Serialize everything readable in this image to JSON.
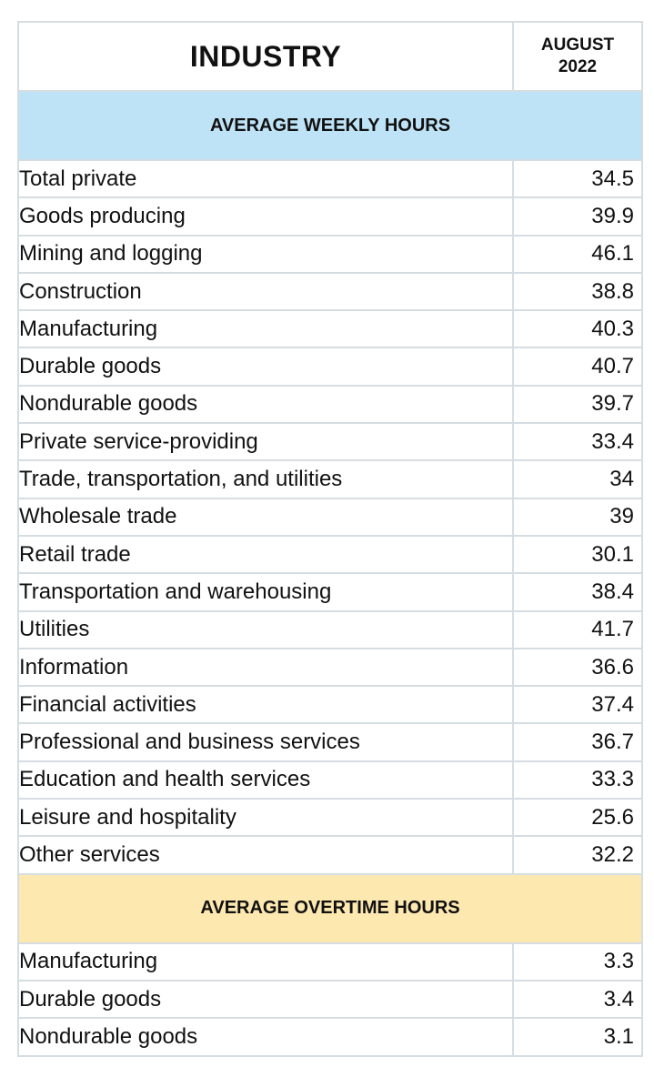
{
  "header": {
    "industry": "INDUSTRY",
    "month_line1": "AUGUST",
    "month_line2": "2022"
  },
  "sections": {
    "weekly_title": "AVERAGE WEEKLY HOURS",
    "overtime_title": "AVERAGE OVERTIME HOURS"
  },
  "colors": {
    "weekly_band": "#bfe3f6",
    "overtime_band": "#fde8b0",
    "grid": "#d5dde3"
  },
  "weekly_rows": [
    {
      "name": "Total private",
      "value": "34.5"
    },
    {
      "name": "Goods producing",
      "value": "39.9"
    },
    {
      "name": "Mining and logging",
      "value": "46.1"
    },
    {
      "name": "Construction",
      "value": "38.8"
    },
    {
      "name": "Manufacturing",
      "value": "40.3"
    },
    {
      "name": "Durable goods",
      "value": "40.7"
    },
    {
      "name": "Nondurable goods",
      "value": "39.7"
    },
    {
      "name": "Private service-providing",
      "value": "33.4"
    },
    {
      "name": "Trade, transportation, and utilities",
      "value": "34"
    },
    {
      "name": "Wholesale trade",
      "value": "39"
    },
    {
      "name": "Retail trade",
      "value": "30.1"
    },
    {
      "name": "Transportation and warehousing",
      "value": "38.4"
    },
    {
      "name": "Utilities",
      "value": "41.7"
    },
    {
      "name": "Information",
      "value": "36.6"
    },
    {
      "name": "Financial activities",
      "value": "37.4"
    },
    {
      "name": "Professional and business services",
      "value": "36.7"
    },
    {
      "name": "Education and health services",
      "value": "33.3"
    },
    {
      "name": "Leisure and hospitality",
      "value": "25.6"
    },
    {
      "name": "Other services",
      "value": "32.2"
    }
  ],
  "overtime_rows": [
    {
      "name": "Manufacturing",
      "value": "3.3"
    },
    {
      "name": "Durable goods",
      "value": "3.4"
    },
    {
      "name": "Nondurable goods",
      "value": "3.1"
    }
  ]
}
